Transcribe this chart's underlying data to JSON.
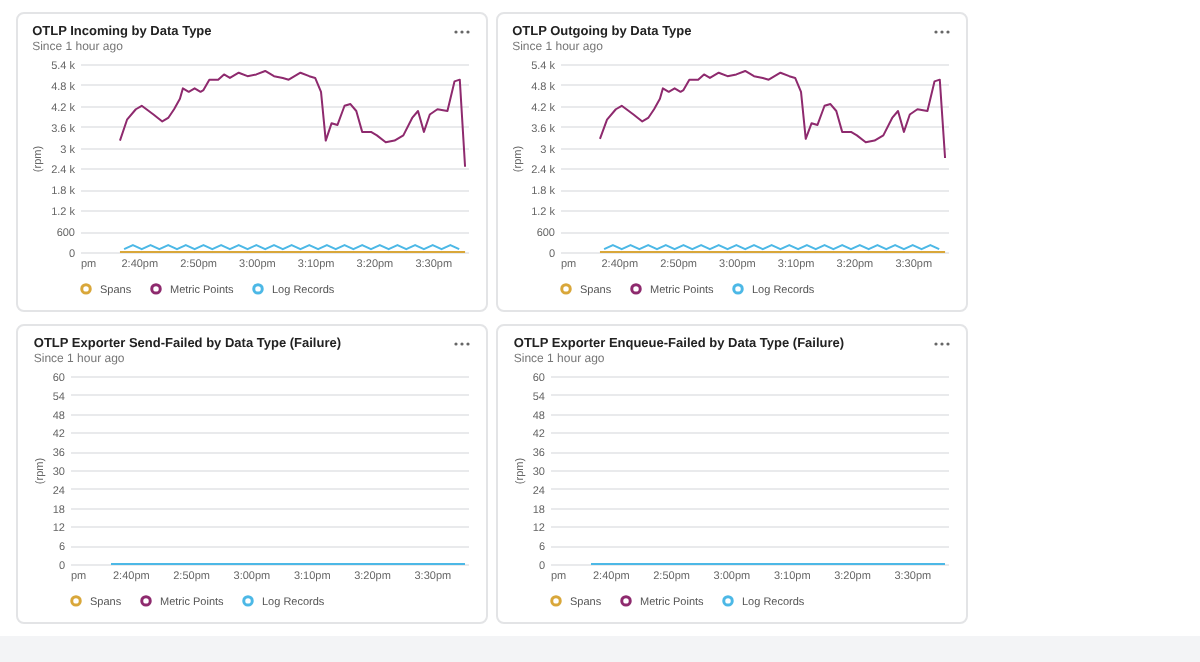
{
  "chart_data": [
    {
      "type": "line",
      "title": "OTLP Incoming by Data Type",
      "subtitle": "Since 1 hour ago",
      "ylabel": "(rpm)",
      "xlim": [
        14.5,
        15.6
      ],
      "xticks": [
        {
          "value": 14.5,
          "label": "pm"
        },
        {
          "value": 14.6667,
          "label": "2:40pm"
        },
        {
          "value": 14.8333,
          "label": "2:50pm"
        },
        {
          "value": 15,
          "label": "3:00pm"
        },
        {
          "value": 15.1667,
          "label": "3:10pm"
        },
        {
          "value": 15.3333,
          "label": "3:20pm"
        },
        {
          "value": 15.5,
          "label": "3:30pm"
        }
      ],
      "ylim": [
        0,
        5400
      ],
      "yticks": [
        0,
        600,
        {
          "value": 1200,
          "label": "1.2 k"
        },
        {
          "value": 1800,
          "label": "1.8 k"
        },
        {
          "value": 2400,
          "label": "2.4 k"
        },
        {
          "value": 3000,
          "label": "3 k"
        },
        {
          "value": 3600,
          "label": "3.6 k"
        },
        {
          "value": 4200,
          "label": "4.2 k"
        },
        {
          "value": 4800,
          "label": "4.8 k"
        },
        {
          "value": 5400,
          "label": "5.4 k"
        }
      ],
      "grid": "y",
      "legend": "bottom",
      "series": [
        {
          "name": "Spans",
          "color": "#d9a73a",
          "x": [
            14.6133,
            15.5917
          ],
          "values": [
            0,
            0
          ]
        },
        {
          "name": "Metric Points",
          "color": "#8e2a6e",
          "x": [
            14.6133,
            14.6333,
            14.6583,
            14.675,
            14.7083,
            14.7333,
            14.75,
            14.7667,
            14.7833,
            14.7917,
            14.8083,
            14.825,
            14.8417,
            14.85,
            14.8667,
            14.8917,
            14.9083,
            14.925,
            14.95,
            14.975,
            15,
            15.025,
            15.05,
            15.075,
            15.0917,
            15.1083,
            15.125,
            15.15,
            15.1667,
            15.1833,
            15.1967,
            15.2133,
            15.23,
            15.25,
            15.2667,
            15.2833,
            15.3,
            15.325,
            15.3417,
            15.3667,
            15.3917,
            15.4167,
            15.4417,
            15.4583,
            15.475,
            15.4917,
            15.5133,
            15.5417,
            15.5617,
            15.5767,
            15.5917
          ],
          "values": [
            3200,
            3800,
            4100,
            4200,
            3950,
            3750,
            3850,
            4100,
            4400,
            4700,
            4600,
            4700,
            4600,
            4650,
            4950,
            4950,
            5100,
            5000,
            5150,
            5050,
            5100,
            5200,
            5050,
            5000,
            4950,
            5050,
            5150,
            5050,
            5000,
            4600,
            3200,
            3700,
            3650,
            4200,
            4250,
            4050,
            3450,
            3450,
            3350,
            3150,
            3200,
            3350,
            3850,
            4050,
            3450,
            3950,
            4100,
            4050,
            4900,
            4950,
            2450
          ]
        },
        {
          "name": "Log Records",
          "color": "#4cb8e6",
          "x": [
            14.625,
            14.65,
            14.675,
            14.7,
            14.725,
            14.75,
            14.775,
            14.8,
            14.825,
            14.85,
            14.875,
            14.9,
            14.925,
            14.95,
            14.975,
            15,
            15.025,
            15.05,
            15.075,
            15.1,
            15.125,
            15.15,
            15.175,
            15.2,
            15.225,
            15.25,
            15.275,
            15.3,
            15.325,
            15.35,
            15.375,
            15.4,
            15.425,
            15.45,
            15.475,
            15.5,
            15.525,
            15.55,
            15.575
          ],
          "values": [
            80,
            200,
            80,
            200,
            80,
            200,
            80,
            200,
            80,
            200,
            80,
            200,
            80,
            200,
            80,
            200,
            80,
            200,
            80,
            200,
            80,
            200,
            80,
            200,
            80,
            200,
            80,
            200,
            80,
            200,
            80,
            200,
            80,
            200,
            80,
            200,
            80,
            200,
            80
          ]
        }
      ]
    },
    {
      "type": "line",
      "title": "OTLP Outgoing by Data Type",
      "subtitle": "Since 1 hour ago",
      "ylabel": "(rpm)",
      "xlim": [
        14.5,
        15.6
      ],
      "xticks": [
        {
          "value": 14.5,
          "label": "pm"
        },
        {
          "value": 14.6667,
          "label": "2:40pm"
        },
        {
          "value": 14.8333,
          "label": "2:50pm"
        },
        {
          "value": 15,
          "label": "3:00pm"
        },
        {
          "value": 15.1667,
          "label": "3:10pm"
        },
        {
          "value": 15.3333,
          "label": "3:20pm"
        },
        {
          "value": 15.5,
          "label": "3:30pm"
        }
      ],
      "ylim": [
        0,
        5400
      ],
      "yticks": [
        0,
        600,
        {
          "value": 1200,
          "label": "1.2 k"
        },
        {
          "value": 1800,
          "label": "1.8 k"
        },
        {
          "value": 2400,
          "label": "2.4 k"
        },
        {
          "value": 3000,
          "label": "3 k"
        },
        {
          "value": 3600,
          "label": "3.6 k"
        },
        {
          "value": 4200,
          "label": "4.2 k"
        },
        {
          "value": 4800,
          "label": "4.8 k"
        },
        {
          "value": 5400,
          "label": "5.4 k"
        }
      ],
      "grid": "y",
      "legend": "bottom",
      "series": [
        {
          "name": "Spans",
          "color": "#d9a73a",
          "x": [
            14.6133,
            15.5917
          ],
          "values": [
            0,
            0
          ]
        },
        {
          "name": "Metric Points",
          "color": "#8e2a6e",
          "x": [
            14.6133,
            14.6333,
            14.6583,
            14.675,
            14.7083,
            14.7333,
            14.75,
            14.7667,
            14.7833,
            14.7917,
            14.8083,
            14.825,
            14.8417,
            14.85,
            14.8667,
            14.8917,
            14.9083,
            14.925,
            14.95,
            14.975,
            15,
            15.025,
            15.05,
            15.075,
            15.0917,
            15.1083,
            15.125,
            15.15,
            15.1667,
            15.1833,
            15.1967,
            15.2133,
            15.23,
            15.25,
            15.2667,
            15.2833,
            15.3,
            15.325,
            15.3417,
            15.3667,
            15.3917,
            15.4167,
            15.4417,
            15.4583,
            15.475,
            15.4917,
            15.5133,
            15.5417,
            15.5617,
            15.5767,
            15.5917
          ],
          "values": [
            3250,
            3800,
            4100,
            4200,
            3950,
            3750,
            3850,
            4100,
            4400,
            4700,
            4600,
            4700,
            4600,
            4650,
            4950,
            4950,
            5100,
            5000,
            5150,
            5050,
            5100,
            5200,
            5050,
            5000,
            4950,
            5050,
            5150,
            5050,
            5000,
            4600,
            3250,
            3700,
            3650,
            4200,
            4250,
            4050,
            3450,
            3450,
            3350,
            3150,
            3200,
            3350,
            3850,
            4050,
            3450,
            3950,
            4100,
            4050,
            4900,
            4950,
            2700
          ]
        },
        {
          "name": "Log Records",
          "color": "#4cb8e6",
          "x": [
            14.625,
            14.65,
            14.675,
            14.7,
            14.725,
            14.75,
            14.775,
            14.8,
            14.825,
            14.85,
            14.875,
            14.9,
            14.925,
            14.95,
            14.975,
            15,
            15.025,
            15.05,
            15.075,
            15.1,
            15.125,
            15.15,
            15.175,
            15.2,
            15.225,
            15.25,
            15.275,
            15.3,
            15.325,
            15.35,
            15.375,
            15.4,
            15.425,
            15.45,
            15.475,
            15.5,
            15.525,
            15.55,
            15.575
          ],
          "values": [
            80,
            200,
            80,
            200,
            80,
            200,
            80,
            200,
            80,
            200,
            80,
            200,
            80,
            200,
            80,
            200,
            80,
            200,
            80,
            200,
            80,
            200,
            80,
            200,
            80,
            200,
            80,
            200,
            80,
            200,
            80,
            200,
            80,
            200,
            80,
            200,
            80,
            200,
            80
          ]
        }
      ]
    },
    {
      "type": "line",
      "title": "OTLP Exporter Send-Failed by Data Type (Failure)",
      "subtitle": "Since 1 hour ago",
      "ylabel": "(rpm)",
      "xlim": [
        14.5,
        15.6
      ],
      "xticks": [
        {
          "value": 14.5,
          "label": "pm"
        },
        {
          "value": 14.6667,
          "label": "2:40pm"
        },
        {
          "value": 14.8333,
          "label": "2:50pm"
        },
        {
          "value": 15,
          "label": "3:00pm"
        },
        {
          "value": 15.1667,
          "label": "3:10pm"
        },
        {
          "value": 15.3333,
          "label": "3:20pm"
        },
        {
          "value": 15.5,
          "label": "3:30pm"
        }
      ],
      "ylim": [
        0,
        60
      ],
      "yticks": [
        0,
        6,
        12,
        18,
        24,
        30,
        36,
        42,
        48,
        54,
        60
      ],
      "grid": "y",
      "legend": "bottom",
      "series": [
        {
          "name": "Spans",
          "color": "#d9a73a",
          "values": [
            null,
            null
          ]
        },
        {
          "name": "Metric Points",
          "color": "#8e2a6e",
          "values": [
            null,
            null
          ]
        },
        {
          "name": "Log Records",
          "color": "#4cb8e6",
          "x": [
            14.6133,
            15.5917
          ],
          "values": [
            0,
            0
          ]
        }
      ]
    },
    {
      "type": "line",
      "title": "OTLP Exporter Enqueue-Failed by Data Type (Failure)",
      "subtitle": "Since 1 hour ago",
      "ylabel": "(rpm)",
      "xlim": [
        14.5,
        15.6
      ],
      "xticks": [
        {
          "value": 14.5,
          "label": "pm"
        },
        {
          "value": 14.6667,
          "label": "2:40pm"
        },
        {
          "value": 14.8333,
          "label": "2:50pm"
        },
        {
          "value": 15,
          "label": "3:00pm"
        },
        {
          "value": 15.1667,
          "label": "3:10pm"
        },
        {
          "value": 15.3333,
          "label": "3:20pm"
        },
        {
          "value": 15.5,
          "label": "3:30pm"
        }
      ],
      "ylim": [
        0,
        60
      ],
      "yticks": [
        0,
        6,
        12,
        18,
        24,
        30,
        36,
        42,
        48,
        54,
        60
      ],
      "grid": "y",
      "legend": "bottom",
      "series": [
        {
          "name": "Spans",
          "color": "#d9a73a",
          "values": [
            null,
            null
          ]
        },
        {
          "name": "Metric Points",
          "color": "#8e2a6e",
          "values": [
            null,
            null
          ]
        },
        {
          "name": "Log Records",
          "color": "#4cb8e6",
          "x": [
            14.6133,
            15.5917
          ],
          "values": [
            0,
            0
          ]
        }
      ]
    }
  ]
}
